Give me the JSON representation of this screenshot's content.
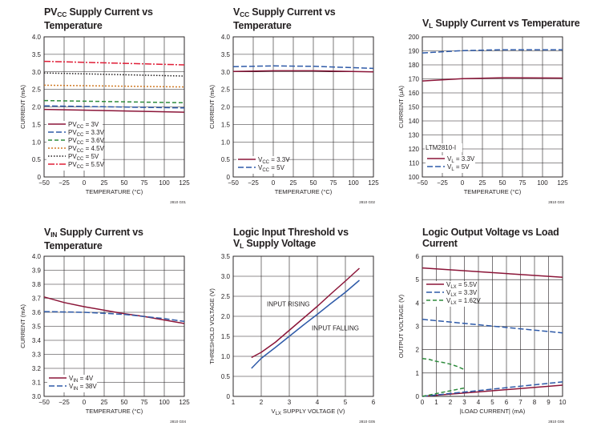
{
  "colors": {
    "maroon": "#8b1538",
    "blue": "#2e5aa8",
    "green": "#2e8b3c",
    "orange": "#d07a25",
    "black": "#231f20",
    "red": "#e01e37",
    "grid": "#231f20"
  },
  "chart_data": [
    {
      "id": "g01",
      "type": "line",
      "title_main": "PV",
      "title_sub": "CC",
      "title_rest": " Supply Current vs",
      "title_line2": "Temperature",
      "xlabel": "TEMPERATURE (°C)",
      "ylabel": "CURRENT (mA)",
      "xlim": [
        -50,
        125
      ],
      "ylim": [
        0,
        4
      ],
      "xticks": [
        -50,
        -25,
        0,
        25,
        50,
        75,
        100,
        125
      ],
      "yticks": [
        0,
        0.5,
        1.0,
        1.5,
        2.0,
        2.5,
        3.0,
        3.5,
        4.0
      ],
      "ytick_labels": [
        "0",
        "0.5",
        "1.0",
        "1.5",
        "2.0",
        "2.5",
        "3.0",
        "3.5",
        "4.0"
      ],
      "code": "2810 G01",
      "series": [
        {
          "name": "PV",
          "sub": "CC",
          "suffix": " = 3V",
          "color": "maroon",
          "dash": "",
          "x": [
            -50,
            125
          ],
          "y": [
            1.93,
            1.85
          ]
        },
        {
          "name": "PV",
          "sub": "CC",
          "suffix": " = 3.3V",
          "color": "blue",
          "dash": "7,3",
          "x": [
            -50,
            125
          ],
          "y": [
            2.03,
            1.97
          ]
        },
        {
          "name": "PV",
          "sub": "CC",
          "suffix": " = 3.6V",
          "color": "green",
          "dash": "5,3",
          "x": [
            -50,
            125
          ],
          "y": [
            2.18,
            2.12
          ]
        },
        {
          "name": "PV",
          "sub": "CC",
          "suffix": " = 4.5V",
          "color": "orange",
          "dash": "2,2",
          "x": [
            -50,
            125
          ],
          "y": [
            2.62,
            2.57
          ]
        },
        {
          "name": "PV",
          "sub": "CC",
          "suffix": " = 5V",
          "color": "black",
          "dash": "1.5,2",
          "x": [
            -50,
            125
          ],
          "y": [
            2.97,
            2.88
          ]
        },
        {
          "name": "PV",
          "sub": "CC",
          "suffix": " = 5.5V",
          "color": "red",
          "dash": "8,2,2,2",
          "x": [
            -50,
            125
          ],
          "y": [
            3.3,
            3.2
          ]
        }
      ]
    },
    {
      "id": "g02",
      "type": "line",
      "title_main": "V",
      "title_sub": "CC",
      "title_rest": " Supply Current vs",
      "title_line2": "Temperature",
      "xlabel": "TEMPERATURE (°C)",
      "ylabel": "CURRENT (mA)",
      "xlim": [
        -50,
        125
      ],
      "ylim": [
        0,
        4
      ],
      "xticks": [
        -50,
        -25,
        0,
        25,
        50,
        75,
        100,
        125
      ],
      "yticks": [
        0,
        0.5,
        1.0,
        1.5,
        2.0,
        2.5,
        3.0,
        3.5,
        4.0
      ],
      "ytick_labels": [
        "0",
        "0.5",
        "1.0",
        "1.5",
        "2.0",
        "2.5",
        "3.0",
        "3.5",
        "4.0"
      ],
      "code": "2810 G02",
      "series": [
        {
          "name": "V",
          "sub": "CC",
          "suffix": " = 3.3V",
          "color": "maroon",
          "dash": "",
          "x": [
            -50,
            0,
            50,
            125
          ],
          "y": [
            3.01,
            3.03,
            3.03,
            3.0
          ]
        },
        {
          "name": "V",
          "sub": "CC",
          "suffix": " = 5V",
          "color": "blue",
          "dash": "7,3",
          "x": [
            -50,
            0,
            50,
            125
          ],
          "y": [
            3.15,
            3.17,
            3.16,
            3.1
          ]
        }
      ]
    },
    {
      "id": "g03",
      "type": "line",
      "title_main": "V",
      "title_sub": "L",
      "title_rest": " Supply Current vs Temperature",
      "title_line2": "",
      "xlabel": "TEMPERATURE (°C)",
      "ylabel": "CURRENT (µA)",
      "xlim": [
        -50,
        125
      ],
      "ylim": [
        100,
        200
      ],
      "xticks": [
        -50,
        -25,
        0,
        25,
        50,
        75,
        100,
        125
      ],
      "yticks": [
        100,
        110,
        120,
        130,
        140,
        150,
        160,
        170,
        180,
        190,
        200
      ],
      "ytick_labels": [
        "100",
        "110",
        "120",
        "130",
        "140",
        "150",
        "160",
        "170",
        "180",
        "190",
        "200"
      ],
      "code": "2810 G03",
      "annotation": "LTM2810-I",
      "series": [
        {
          "name": "V",
          "sub": "L",
          "suffix": " = 3.3V",
          "color": "maroon",
          "dash": "",
          "x": [
            -50,
            0,
            50,
            125
          ],
          "y": [
            168.5,
            170.2,
            170.8,
            170.6
          ]
        },
        {
          "name": "V",
          "sub": "L",
          "suffix": " = 5V",
          "color": "blue",
          "dash": "7,3",
          "x": [
            -50,
            0,
            50,
            125
          ],
          "y": [
            188.5,
            190.2,
            190.8,
            190.8
          ]
        }
      ]
    },
    {
      "id": "g04",
      "type": "line",
      "title_main": "V",
      "title_sub": "IN",
      "title_rest": " Supply Current vs",
      "title_line2": "Temperature",
      "xlabel": "TEMPERATURE (°C)",
      "ylabel": "CURRENT (mA)",
      "xlim": [
        -50,
        125
      ],
      "ylim": [
        3.0,
        4.0
      ],
      "xticks": [
        -50,
        -25,
        0,
        25,
        50,
        75,
        100,
        125
      ],
      "yticks": [
        3.0,
        3.1,
        3.2,
        3.3,
        3.4,
        3.5,
        3.6,
        3.7,
        3.8,
        3.9,
        4.0
      ],
      "ytick_labels": [
        "3.0",
        "3.1",
        "3.2",
        "3.3",
        "3.4",
        "3.5",
        "3.6",
        "3.7",
        "3.8",
        "3.9",
        "4.0"
      ],
      "xtick_labels": [
        "−50",
        "−25",
        "0",
        "25",
        "50",
        "75",
        "100",
        "125"
      ],
      "code": "2810 G04",
      "series": [
        {
          "name": "V",
          "sub": "IN",
          "suffix": " = 4V",
          "color": "maroon",
          "dash": "",
          "x": [
            -50,
            -25,
            0,
            25,
            50,
            75,
            100,
            125
          ],
          "y": [
            3.71,
            3.67,
            3.64,
            3.615,
            3.59,
            3.57,
            3.545,
            3.52
          ]
        },
        {
          "name": "V",
          "sub": "IN",
          "suffix": " = 38V",
          "color": "blue",
          "dash": "7,3",
          "x": [
            -50,
            0,
            50,
            100,
            125
          ],
          "y": [
            3.605,
            3.6,
            3.585,
            3.555,
            3.535
          ]
        }
      ]
    },
    {
      "id": "g05",
      "type": "line",
      "title_main": "Logic Input Threshold vs",
      "title_sub": "",
      "title_rest": "",
      "title_line2_main": "V",
      "title_line2_sub": "L",
      "title_line2_rest": " Supply Voltage",
      "xlabel_main": "V",
      "xlabel_sub": "LX",
      "xlabel_rest": " SUPPLY VOLTAGE (V)",
      "ylabel": "THRESHOLD VOLTAGE (V)",
      "xlim": [
        1,
        6
      ],
      "ylim": [
        0,
        3.5
      ],
      "xticks": [
        1,
        2,
        3,
        4,
        5,
        6
      ],
      "yticks": [
        0,
        0.5,
        1.0,
        1.5,
        2.0,
        2.5,
        3.0,
        3.5
      ],
      "ytick_labels": [
        "0",
        "0.5",
        "1.0",
        "1.5",
        "2.0",
        "2.5",
        "3.0",
        "3.5"
      ],
      "code": "2810 G05",
      "labels": {
        "rising": "INPUT RISING",
        "falling": "INPUT FALLING"
      },
      "series": [
        {
          "name": "INPUT RISING",
          "color": "maroon",
          "dash": "",
          "x": [
            1.65,
            2.0,
            2.5,
            3.0,
            3.5,
            4.0,
            4.5,
            5.0,
            5.5
          ],
          "y": [
            0.97,
            1.1,
            1.35,
            1.65,
            1.95,
            2.25,
            2.57,
            2.88,
            3.2
          ]
        },
        {
          "name": "INPUT FALLING",
          "color": "blue",
          "dash": "",
          "x": [
            1.65,
            2.0,
            2.5,
            3.0,
            3.5,
            4.0,
            4.5,
            5.0,
            5.5
          ],
          "y": [
            0.7,
            0.95,
            1.22,
            1.5,
            1.78,
            2.05,
            2.33,
            2.6,
            2.9
          ]
        }
      ]
    },
    {
      "id": "g06",
      "type": "line",
      "title_main": "Logic Output Voltage vs Load",
      "title_sub": "",
      "title_rest": "",
      "title_line2": "Current",
      "xlabel": "|LOAD CURRENT| (mA)",
      "ylabel": "OUTPUT VOLTAGE (V)",
      "xlim": [
        0,
        10
      ],
      "ylim": [
        0,
        6
      ],
      "xticks": [
        0,
        1,
        2,
        3,
        4,
        5,
        6,
        7,
        8,
        9,
        10
      ],
      "yticks": [
        0,
        1,
        2,
        3,
        4,
        5,
        6
      ],
      "ytick_labels": [
        "0",
        "1",
        "2",
        "3",
        "4",
        "5",
        "6"
      ],
      "code": "2810 G06",
      "series": [
        {
          "name": "V",
          "sub": "LX",
          "suffix": " = 5.5V",
          "color": "maroon",
          "dash": "",
          "x": [
            0,
            10
          ],
          "y": [
            5.5,
            5.1
          ]
        },
        {
          "name": "V",
          "sub": "LX",
          "suffix": " = 3.3V",
          "color": "blue",
          "dash": "7,3",
          "x": [
            0,
            10
          ],
          "y": [
            3.3,
            2.72
          ]
        },
        {
          "name": "V",
          "sub": "LX",
          "suffix": " = 1.62V",
          "color": "green",
          "dash": "5,3",
          "x": [
            0,
            0.5,
            1,
            1.5,
            2,
            2.5,
            3
          ],
          "y": [
            1.62,
            1.58,
            1.5,
            1.45,
            1.38,
            1.28,
            1.15
          ]
        }
      ],
      "low_series": [
        {
          "color": "maroon",
          "dash": "",
          "x": [
            0,
            10
          ],
          "y": [
            0,
            0.48
          ]
        },
        {
          "color": "blue",
          "dash": "7,3",
          "x": [
            0,
            10
          ],
          "y": [
            0,
            0.62
          ]
        },
        {
          "color": "green",
          "dash": "5,3",
          "x": [
            0,
            3
          ],
          "y": [
            0,
            0.36
          ]
        }
      ]
    }
  ]
}
